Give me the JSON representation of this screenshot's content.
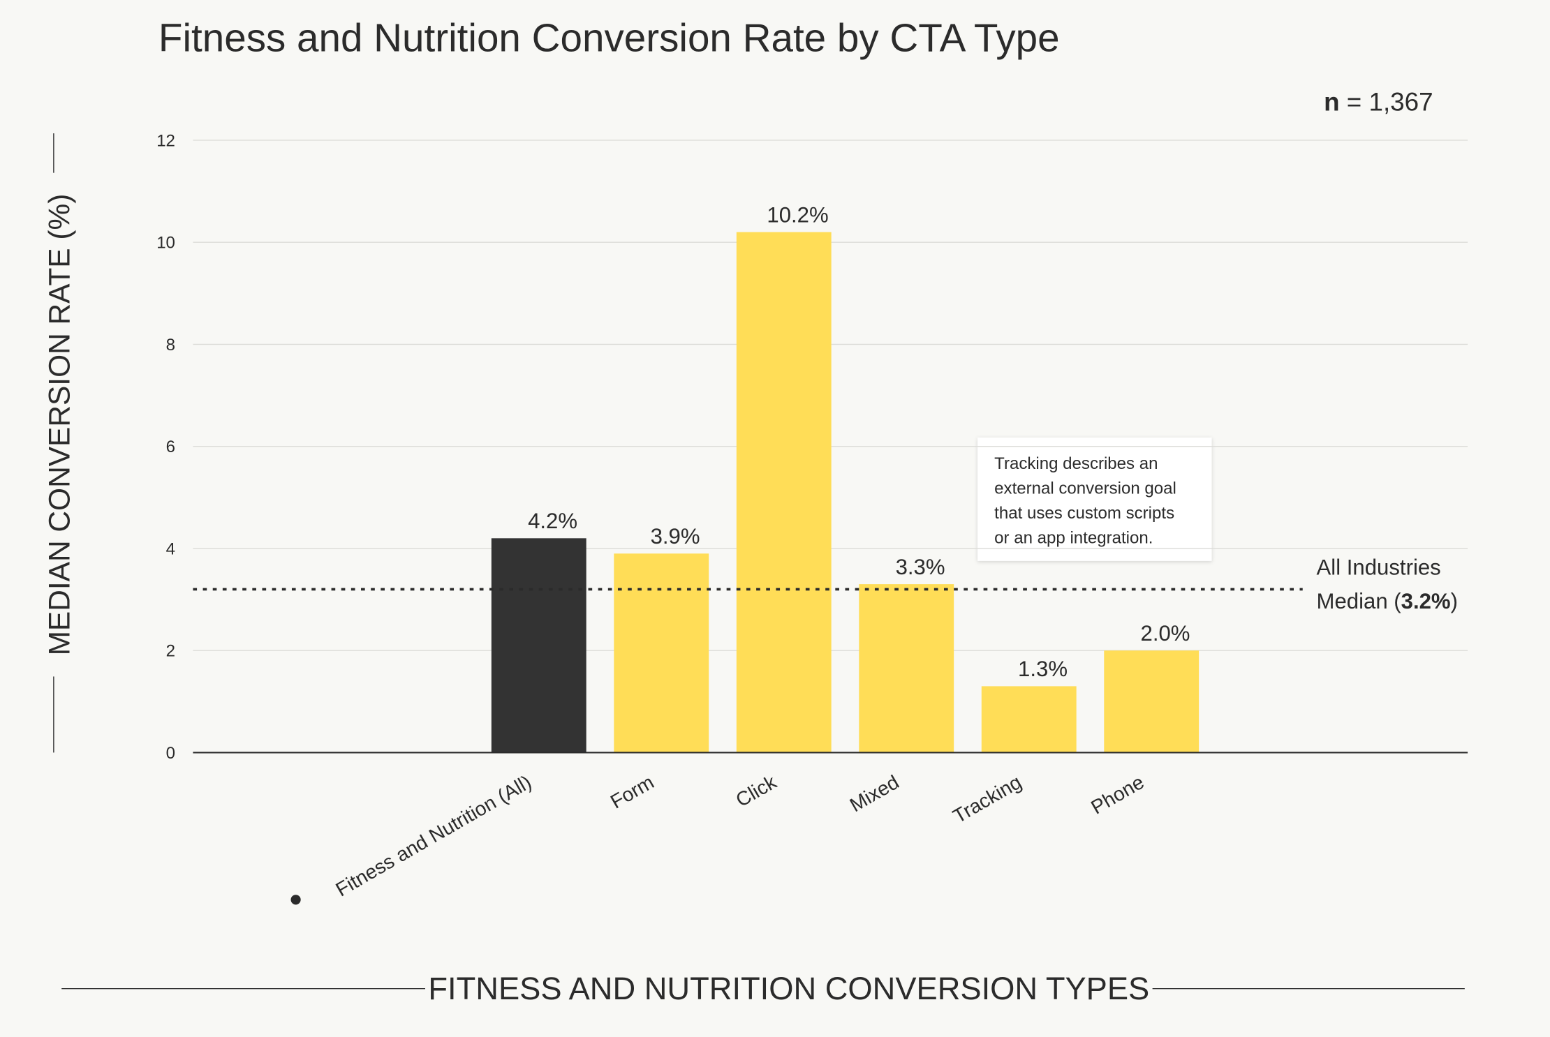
{
  "chart_data": {
    "type": "bar",
    "title": "Fitness and Nutrition Conversion Rate by CTA Type",
    "n_label": "n",
    "n_value": "= 1,367",
    "y_axis_label": "MEDIAN CONVERSION RATE (%)",
    "x_axis_label": "FITNESS AND NUTRITION CONVERSION TYPES",
    "categories": [
      "Fitness and Nutrition (All)",
      "Form",
      "Click",
      "Mixed",
      "Tracking",
      "Phone"
    ],
    "values": [
      4.2,
      3.9,
      10.2,
      3.3,
      1.3,
      2.0
    ],
    "value_labels": [
      "4.2%",
      "3.9%",
      "10.2%",
      "3.3%",
      "1.3%",
      "2.0%"
    ],
    "colors": [
      "#333333",
      "#ffdd57",
      "#ffdd57",
      "#ffdd57",
      "#ffdd57",
      "#ffdd57"
    ],
    "ylim": [
      0,
      12
    ],
    "yticks": [
      0,
      2,
      4,
      6,
      8,
      10,
      12
    ],
    "grid": true,
    "reference_line": {
      "value": 3.2,
      "label_line1": "All Industries",
      "label_prefix": "Median (",
      "value_label": "3.2%",
      "label_suffix": ")"
    },
    "annotation": [
      "Tracking describes an",
      "external conversion goal",
      "that uses custom scripts",
      "or an app integration."
    ]
  }
}
